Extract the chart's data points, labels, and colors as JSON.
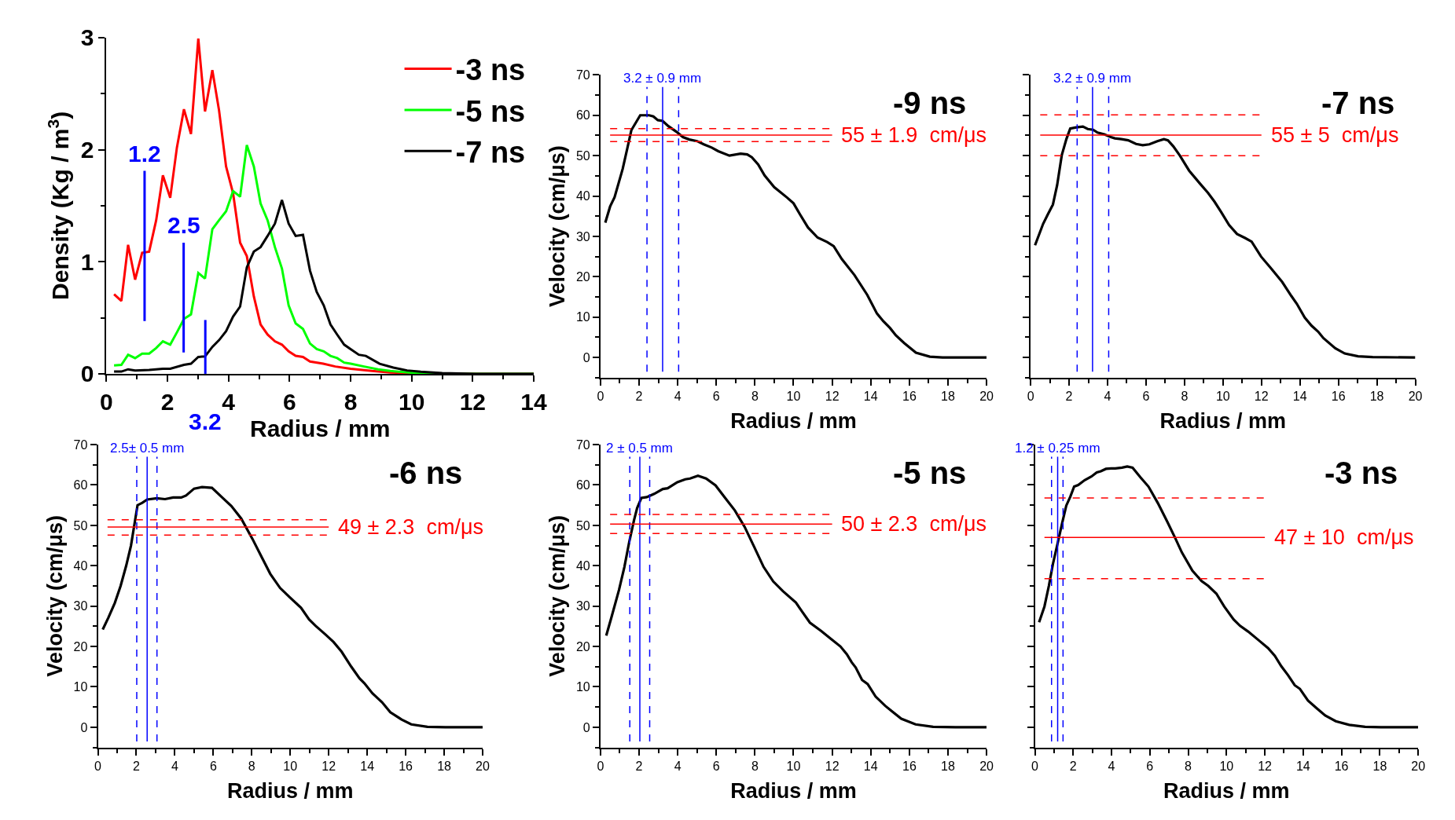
{
  "chart_data": [
    {
      "type": "line",
      "xlabel": "Radius / mm",
      "ylabel": "Density (Kg / m$^{3}$)",
      "xlim": [
        0,
        14
      ],
      "ylim": [
        0,
        3
      ],
      "xticks": [
        0,
        2,
        4,
        6,
        8,
        10,
        12,
        14
      ],
      "yticks": [
        0,
        1,
        2,
        3
      ],
      "legend": "top right",
      "grid": false,
      "series": [
        {
          "name": "-3 ns",
          "color": "#ff0000",
          "x": [
            0.25,
            0.49,
            0.71,
            0.94,
            1.17,
            1.4,
            1.63,
            1.85,
            2.09,
            2.31,
            2.54,
            2.77,
            3.01,
            3.23,
            3.47,
            3.69,
            3.92,
            4.15,
            4.38,
            4.6,
            4.83,
            5.05,
            5.28,
            5.52,
            5.75,
            5.97,
            6.2,
            6.44,
            6.67,
            7.1,
            7.5,
            8.0,
            8.7,
            9.3,
            10.0,
            11.5,
            14.0
          ],
          "values": [
            0.71,
            0.65,
            1.15,
            0.84,
            1.08,
            1.09,
            1.37,
            1.77,
            1.57,
            2.02,
            2.36,
            2.14,
            2.99,
            2.34,
            2.71,
            2.35,
            1.85,
            1.61,
            1.17,
            1.05,
            0.69,
            0.44,
            0.35,
            0.29,
            0.26,
            0.2,
            0.16,
            0.15,
            0.11,
            0.09,
            0.065,
            0.045,
            0.025,
            0.012,
            0.005,
            0,
            0
          ]
        },
        {
          "name": "-5 ns",
          "color": "#00ff00",
          "x": [
            0.25,
            0.49,
            0.71,
            0.94,
            1.17,
            1.4,
            1.63,
            1.85,
            2.09,
            2.31,
            2.54,
            2.77,
            3.01,
            3.23,
            3.47,
            3.69,
            3.92,
            4.15,
            4.38,
            4.6,
            4.83,
            5.05,
            5.28,
            5.52,
            5.75,
            5.97,
            6.2,
            6.44,
            6.67,
            6.89,
            7.12,
            7.34,
            7.56,
            7.79,
            8.0,
            8.44,
            8.9,
            9.3,
            10.0,
            11.0,
            14.0
          ],
          "values": [
            0.075,
            0.08,
            0.17,
            0.14,
            0.18,
            0.18,
            0.23,
            0.29,
            0.26,
            0.37,
            0.49,
            0.53,
            0.9,
            0.85,
            1.29,
            1.37,
            1.45,
            1.63,
            1.58,
            2.04,
            1.85,
            1.52,
            1.37,
            1.13,
            0.94,
            0.61,
            0.45,
            0.4,
            0.27,
            0.22,
            0.2,
            0.16,
            0.14,
            0.1,
            0.09,
            0.065,
            0.04,
            0.025,
            0.01,
            0,
            0
          ]
        },
        {
          "name": "-7 ns",
          "color": "#000000",
          "x": [
            0.25,
            0.49,
            0.71,
            0.94,
            1.4,
            1.85,
            2.09,
            2.54,
            2.77,
            3.01,
            3.23,
            3.47,
            3.69,
            3.92,
            4.15,
            4.38,
            4.6,
            4.83,
            5.05,
            5.28,
            5.52,
            5.75,
            5.97,
            6.2,
            6.44,
            6.67,
            6.89,
            7.12,
            7.34,
            7.56,
            7.79,
            8.0,
            8.27,
            8.5,
            8.95,
            9.4,
            9.85,
            10.3,
            11.0,
            12.1,
            14.0
          ],
          "values": [
            0.02,
            0.02,
            0.04,
            0.03,
            0.035,
            0.045,
            0.045,
            0.08,
            0.09,
            0.15,
            0.155,
            0.24,
            0.3,
            0.38,
            0.51,
            0.6,
            0.95,
            1.09,
            1.13,
            1.23,
            1.34,
            1.55,
            1.34,
            1.23,
            1.24,
            0.92,
            0.73,
            0.61,
            0.44,
            0.35,
            0.26,
            0.22,
            0.17,
            0.16,
            0.09,
            0.055,
            0.03,
            0.018,
            0.006,
            0,
            0
          ]
        },
        {
          "color": "#0000ff",
          "x": [
            1.25,
            1.25
          ],
          "values": [
            0.47,
            1.81
          ]
        },
        {
          "color": "#0000ff",
          "x": [
            2.53,
            2.53
          ],
          "values": [
            0.19,
            1.17
          ]
        },
        {
          "color": "#0000ff",
          "x": [
            3.24,
            3.24
          ],
          "values": [
            0,
            0.48
          ]
        }
      ],
      "annotations": [
        {
          "text": "1.2",
          "x": 1.25,
          "y": 1.81
        },
        {
          "text": "2.5",
          "x": 2.53,
          "y": 1.17
        },
        {
          "text": "3.2",
          "x": 3.24,
          "y": 0
        }
      ]
    },
    {
      "type": "line",
      "title": "-9 ns",
      "xlabel": "Radius / mm",
      "ylabel": "Velocity (cm/μs)",
      "xlim": [
        0,
        20
      ],
      "ylim": [
        -5,
        70
      ],
      "xticks": [
        0,
        2,
        4,
        6,
        8,
        10,
        12,
        14,
        16,
        18,
        20
      ],
      "yticks": [
        0,
        10,
        20,
        30,
        40,
        50,
        60,
        70
      ],
      "grid": false,
      "series": [
        {
          "color": "#000000",
          "x": [
            0.25,
            0.5,
            0.73,
            1.15,
            1.4,
            1.6,
            2.06,
            2.52,
            2.74,
            2.97,
            3.22,
            3.52,
            3.94,
            4.27,
            4.6,
            5.0,
            5.35,
            5.76,
            6.1,
            6.68,
            7.26,
            7.6,
            7.84,
            8.17,
            8.5,
            9.0,
            9.67,
            10.0,
            10.33,
            10.75,
            11.25,
            11.74,
            12.08,
            12.5,
            13.16,
            13.82,
            14.32,
            14.65,
            15.0,
            15.3,
            15.73,
            16.34,
            17.06,
            17.72,
            20.0
          ],
          "values": [
            33.4,
            37.4,
            39.7,
            46.7,
            52,
            56.3,
            60,
            60,
            59.7,
            58.8,
            58.6,
            57.3,
            55.9,
            54.6,
            54,
            53.6,
            52.8,
            52,
            51.1,
            50,
            50.5,
            50.3,
            49.6,
            47.8,
            45.1,
            42.2,
            39.6,
            38.2,
            35.5,
            32.2,
            29.7,
            28.6,
            27.6,
            24.4,
            20.4,
            15.5,
            10.9,
            9.0,
            7.3,
            5.5,
            3.6,
            1.2,
            0.2,
            0,
            0
          ]
        }
      ],
      "ref_lines": [
        {
          "axis": "x",
          "value": 3.22,
          "label": "3.2 ± 0.9 mm",
          "color": "#0000ff",
          "line_style": "solid"
        },
        {
          "axis": "x",
          "value": 2.41,
          "color": "#0000ff",
          "line_style": "dashed"
        },
        {
          "axis": "x",
          "value": 4.05,
          "color": "#0000ff",
          "line_style": "dashed"
        },
        {
          "axis": "y",
          "value": 55.1,
          "label": "55 ± 1.9  cm/μs",
          "color": "#ff0000",
          "line_style": "solid"
        },
        {
          "axis": "y",
          "value": 56.7,
          "color": "#ff0000",
          "line_style": "dashed"
        },
        {
          "axis": "y",
          "value": 53.5,
          "color": "#ff0000",
          "line_style": "dashed"
        }
      ]
    },
    {
      "type": "line",
      "title": "-7 ns",
      "xlabel": "Radius / mm",
      "xlim": [
        0,
        20
      ],
      "ylim": [
        -5,
        70
      ],
      "xticks": [
        0,
        2,
        4,
        6,
        8,
        10,
        12,
        14,
        16,
        18,
        20
      ],
      "yticks": [
        0,
        10,
        20,
        30,
        40,
        50,
        60,
        70
      ],
      "tick_labels": "x",
      "grid": false,
      "series": [
        {
          "color": "#000000",
          "x": [
            0.23,
            0.65,
            0.9,
            1.16,
            1.38,
            1.62,
            1.86,
            2.06,
            2.38,
            2.72,
            2.97,
            3.25,
            3.48,
            3.83,
            4.17,
            4.38,
            4.72,
            5.07,
            5.48,
            5.83,
            6.17,
            6.59,
            6.93,
            7.14,
            7.42,
            7.76,
            8.24,
            8.8,
            9.22,
            9.56,
            9.91,
            10.32,
            10.73,
            11.15,
            11.49,
            11.98,
            12.46,
            13.08,
            13.56,
            13.84,
            14.25,
            14.6,
            14.95,
            15.22,
            15.84,
            16.33,
            17.02,
            17.78,
            20.0
          ],
          "values": [
            27.8,
            33.1,
            35.5,
            37.9,
            42.7,
            50.1,
            54.1,
            56.7,
            57,
            57.2,
            56.6,
            56.4,
            55.7,
            55.3,
            54.6,
            54.3,
            54.1,
            53.8,
            52.9,
            52.6,
            52.8,
            53.6,
            54.1,
            53.8,
            52.3,
            50,
            46.3,
            43.1,
            40.8,
            38.6,
            36,
            32.8,
            30.6,
            29.6,
            28.7,
            25,
            22.3,
            18.7,
            15.2,
            13.3,
            9.9,
            7.9,
            6.4,
            4.8,
            2.3,
            1.0,
            0.3,
            0.1,
            0
          ]
        }
      ],
      "ref_lines": [
        {
          "axis": "x",
          "value": 3.22,
          "label": "3.2 ± 0.9 mm",
          "color": "#0000ff",
          "line_style": "solid"
        },
        {
          "axis": "x",
          "value": 2.42,
          "color": "#0000ff",
          "line_style": "dashed"
        },
        {
          "axis": "x",
          "value": 4.06,
          "color": "#0000ff",
          "line_style": "dashed"
        },
        {
          "axis": "y",
          "value": 55.1,
          "label": "55 ± 5  cm/μs",
          "color": "#ff0000",
          "line_style": "solid"
        },
        {
          "axis": "y",
          "value": 60.1,
          "color": "#ff0000",
          "line_style": "dashed"
        },
        {
          "axis": "y",
          "value": 50.0,
          "color": "#ff0000",
          "line_style": "dashed"
        }
      ]
    },
    {
      "type": "line",
      "title": "-6 ns",
      "xlabel": "Radius / mm",
      "ylabel": "Velocity (cm/μs)",
      "xlim": [
        0,
        20
      ],
      "ylim": [
        -5,
        70
      ],
      "xticks": [
        0,
        2,
        4,
        6,
        8,
        10,
        12,
        14,
        16,
        18,
        20
      ],
      "yticks": [
        0,
        10,
        20,
        30,
        40,
        50,
        60,
        70
      ],
      "grid": false,
      "series": [
        {
          "color": "#000000",
          "x": [
            0.25,
            0.54,
            0.88,
            1.18,
            1.47,
            1.72,
            2.06,
            2.31,
            2.56,
            3.07,
            3.49,
            3.91,
            4.33,
            4.58,
            5.0,
            5.42,
            5.93,
            6.44,
            6.94,
            7.45,
            8.04,
            8.54,
            8.96,
            9.47,
            9.97,
            10.56,
            10.98,
            11.32,
            11.82,
            12.25,
            12.67,
            13.17,
            13.6,
            13.85,
            14.27,
            14.77,
            15.2,
            15.79,
            16.29,
            17.13,
            18.06,
            20.0
          ],
          "values": [
            24.2,
            27.1,
            30.8,
            35,
            40,
            45,
            55,
            55.6,
            56.4,
            56.7,
            56.5,
            56.9,
            56.9,
            57.4,
            59.1,
            59.5,
            59.3,
            57,
            54.8,
            51.7,
            46.6,
            41.9,
            38,
            34.5,
            32.2,
            29.6,
            26.7,
            25.1,
            23,
            21.1,
            18.7,
            15,
            12.1,
            10.9,
            8.4,
            6.2,
            3.7,
            1.9,
            0.7,
            0.1,
            0,
            0
          ]
        }
      ],
      "ref_lines": [
        {
          "axis": "x",
          "value": 2.56,
          "label": "2.5± 0.5 mm",
          "color": "#0000ff",
          "line_style": "solid"
        },
        {
          "axis": "x",
          "value": 2.02,
          "color": "#0000ff",
          "line_style": "dashed"
        },
        {
          "axis": "x",
          "value": 3.07,
          "color": "#0000ff",
          "line_style": "dashed"
        },
        {
          "axis": "y",
          "value": 49.6,
          "label": "49 ± 2.3  cm/μs",
          "color": "#ff0000",
          "line_style": "solid"
        },
        {
          "axis": "y",
          "value": 51.4,
          "color": "#ff0000",
          "line_style": "dashed"
        },
        {
          "axis": "y",
          "value": 47.6,
          "color": "#ff0000",
          "line_style": "dashed"
        }
      ]
    },
    {
      "type": "line",
      "title": "-5 ns",
      "xlabel": "Radius / mm",
      "ylabel": "Velocity (cm/μs)",
      "xlim": [
        0,
        20
      ],
      "ylim": [
        -5,
        70
      ],
      "xticks": [
        0,
        2,
        4,
        6,
        8,
        10,
        12,
        14,
        16,
        18,
        20
      ],
      "yticks": [
        0,
        10,
        20,
        30,
        40,
        50,
        60,
        70
      ],
      "grid": false,
      "series": [
        {
          "color": "#000000",
          "x": [
            0.3,
            0.58,
            0.96,
            1.24,
            1.49,
            1.74,
            1.9,
            2.12,
            2.4,
            2.78,
            3.23,
            3.48,
            3.98,
            4.39,
            4.64,
            5.05,
            5.47,
            5.96,
            6.46,
            6.96,
            7.46,
            7.96,
            8.45,
            8.95,
            9.45,
            10.12,
            10.45,
            10.85,
            11.44,
            11.93,
            12.43,
            12.76,
            13.01,
            13.22,
            13.55,
            13.84,
            14.25,
            14.75,
            15.08,
            15.58,
            16.32,
            17.23,
            18.39,
            20.0
          ],
          "values": [
            22.7,
            27.4,
            34,
            39.7,
            45.9,
            51.3,
            54.3,
            56.8,
            57,
            57.8,
            59,
            59.2,
            60.7,
            61.4,
            61.6,
            62.3,
            61.6,
            59.9,
            56.8,
            53.7,
            49.7,
            44.7,
            39.7,
            36.1,
            33.7,
            30.9,
            28.6,
            25.9,
            23.8,
            21.9,
            20,
            18.1,
            16.1,
            14.8,
            11.7,
            10.7,
            7.6,
            5.3,
            4,
            2.1,
            0.7,
            0.1,
            0,
            0
          ]
        }
      ],
      "ref_lines": [
        {
          "axis": "x",
          "value": 2.04,
          "label": "2 ± 0.5 mm",
          "color": "#0000ff",
          "line_style": "solid"
        },
        {
          "axis": "x",
          "value": 1.52,
          "color": "#0000ff",
          "line_style": "dashed"
        },
        {
          "axis": "x",
          "value": 2.55,
          "color": "#0000ff",
          "line_style": "dashed"
        },
        {
          "axis": "y",
          "value": 50.3,
          "label": "50 ± 2.3  cm/μs",
          "color": "#ff0000",
          "line_style": "solid"
        },
        {
          "axis": "y",
          "value": 52.7,
          "color": "#ff0000",
          "line_style": "dashed"
        },
        {
          "axis": "y",
          "value": 48.0,
          "color": "#ff0000",
          "line_style": "dashed"
        }
      ]
    },
    {
      "type": "line",
      "title": "-3 ns",
      "xlabel": "Radius / mm",
      "xlim": [
        0,
        20
      ],
      "ylim": [
        -5,
        70
      ],
      "xticks": [
        0,
        2,
        4,
        6,
        8,
        10,
        12,
        14,
        16,
        18,
        20
      ],
      "yticks": [
        0,
        10,
        20,
        30,
        40,
        50,
        60,
        70
      ],
      "tick_labels": "x",
      "grid": false,
      "series": [
        {
          "color": "#000000",
          "x": [
            0.22,
            0.5,
            0.73,
            0.94,
            1.22,
            1.43,
            1.64,
            1.85,
            2.05,
            2.26,
            2.6,
            2.95,
            3.23,
            3.44,
            3.71,
            3.99,
            4.2,
            4.55,
            4.82,
            5.1,
            5.51,
            5.93,
            6.42,
            6.9,
            7.32,
            7.67,
            8.22,
            8.7,
            9.05,
            9.47,
            9.88,
            10.37,
            10.71,
            11.13,
            11.69,
            12.17,
            12.52,
            12.86,
            13.21,
            13.56,
            13.83,
            14.25,
            14.73,
            15.15,
            15.7,
            16.4,
            17.23,
            18.06,
            20.0
          ],
          "values": [
            26,
            29.9,
            35,
            40.4,
            46.2,
            50.7,
            54.9,
            57.1,
            59.6,
            60,
            61.2,
            62.1,
            63.1,
            63.4,
            64,
            64.1,
            64.1,
            64.3,
            64.6,
            64.3,
            61.9,
            59.6,
            55.5,
            51,
            46.9,
            43.3,
            38.8,
            36.2,
            35,
            33.1,
            29.9,
            26.7,
            25.1,
            23.7,
            21.5,
            19.6,
            17.7,
            15.1,
            12.9,
            10.4,
            9.5,
            6.6,
            4.6,
            2.9,
            1.5,
            0.6,
            0.1,
            0,
            0
          ]
        }
      ],
      "ref_lines": [
        {
          "axis": "x",
          "value": 1.19,
          "label": "1.2 ± 0.25 mm",
          "color": "#0000ff",
          "line_style": "solid"
        },
        {
          "axis": "x",
          "value": 0.87,
          "color": "#0000ff",
          "line_style": "dashed"
        },
        {
          "axis": "x",
          "value": 1.47,
          "color": "#0000ff",
          "line_style": "dashed"
        },
        {
          "axis": "y",
          "value": 47.0,
          "label": "47 ± 10  cm/μs",
          "color": "#ff0000",
          "line_style": "solid"
        },
        {
          "axis": "y",
          "value": 56.8,
          "color": "#ff0000",
          "line_style": "dashed"
        },
        {
          "axis": "y",
          "value": 36.8,
          "color": "#ff0000",
          "line_style": "dashed"
        }
      ]
    }
  ]
}
